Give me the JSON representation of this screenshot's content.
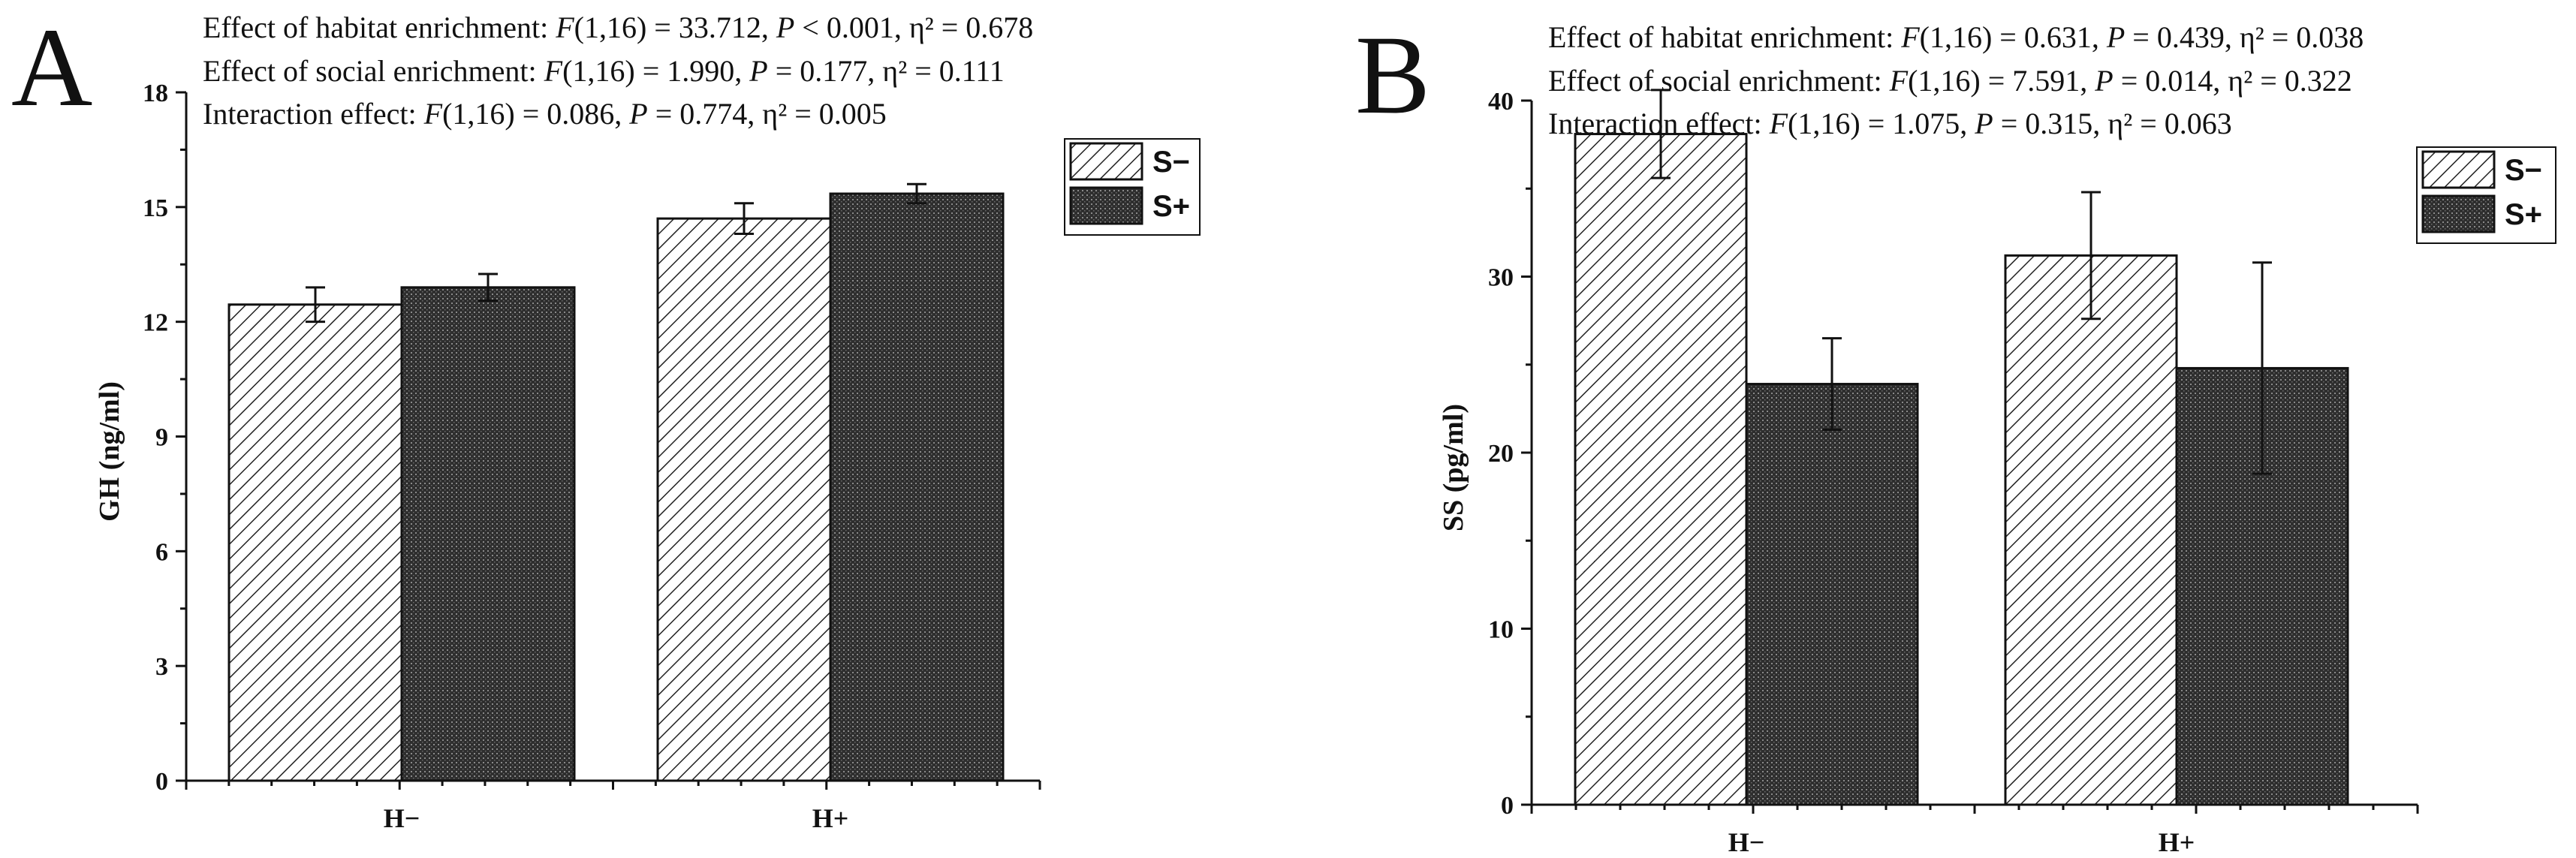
{
  "panels": {
    "A": {
      "letter": "A",
      "stats": [
        {
          "label": "Effect of habitat enrichment: ",
          "F": "F",
          "df": "(1,16)",
          "fval": " = 33.712, ",
          "P": "P",
          "pval": " < 0.001, η² = 0.678"
        },
        {
          "label": "Effect of social enrichment: ",
          "F": "F",
          "df": "(1,16)",
          "fval": " = 1.990, ",
          "P": "P",
          "pval": " = 0.177, η² = 0.111"
        },
        {
          "label": "Interaction effect: ",
          "F": "F",
          "df": "(1,16)",
          "fval": " = 0.086, ",
          "P": "P",
          "pval": " = 0.774, η² = 0.005"
        }
      ]
    },
    "B": {
      "letter": "B",
      "stats": [
        {
          "label": "Effect of habitat enrichment: ",
          "F": "F",
          "df": "(1,16)",
          "fval": " = 0.631, ",
          "P": "P",
          "pval": " = 0.439, η² = 0.038"
        },
        {
          "label": "Effect of social enrichment: ",
          "F": "F",
          "df": "(1,16)",
          "fval": " = 7.591, ",
          "P": "P",
          "pval": " = 0.014, η² = 0.322"
        },
        {
          "label": "Interaction effect: ",
          "F": "F",
          "df": "(1,16)",
          "fval": " = 1.075, ",
          "P": "P",
          "pval": " = 0.315, η² = 0.063"
        }
      ]
    }
  },
  "chart_data": [
    {
      "type": "bar",
      "panel": "A",
      "ylabel": "GH (ng/ml)",
      "xlabel": "",
      "categories": [
        "H−",
        "H+"
      ],
      "series": [
        {
          "name": "S−",
          "pattern": "diagonal-hatch",
          "values": [
            12.45,
            14.7
          ],
          "errors": [
            0.45,
            0.4
          ]
        },
        {
          "name": "S+",
          "pattern": "dense-dots",
          "values": [
            12.9,
            15.35
          ],
          "errors": [
            0.35,
            0.25
          ]
        }
      ],
      "ylim": [
        0,
        18
      ],
      "yticks": [
        0,
        3,
        6,
        9,
        12,
        15,
        18
      ],
      "legend": [
        "S−",
        "S+"
      ],
      "legend_position": "top-right",
      "colors": {
        "hatch_fill": "#ffffff",
        "dots_fill": "#3a3a3a",
        "stroke": "#111111"
      }
    },
    {
      "type": "bar",
      "panel": "B",
      "ylabel": "SS (pg/ml)",
      "xlabel": "",
      "categories": [
        "H−",
        "H+"
      ],
      "series": [
        {
          "name": "S−",
          "pattern": "diagonal-hatch",
          "values": [
            38.1,
            31.2
          ],
          "errors": [
            2.5,
            3.6
          ]
        },
        {
          "name": "S+",
          "pattern": "dense-dots",
          "values": [
            23.9,
            24.8
          ],
          "errors": [
            2.6,
            6.0
          ]
        }
      ],
      "ylim": [
        0,
        40
      ],
      "yticks": [
        0,
        10,
        20,
        30,
        40
      ],
      "legend": [
        "S−",
        "S+"
      ],
      "legend_position": "top-right",
      "colors": {
        "hatch_fill": "#ffffff",
        "dots_fill": "#3a3a3a",
        "stroke": "#111111"
      }
    }
  ]
}
